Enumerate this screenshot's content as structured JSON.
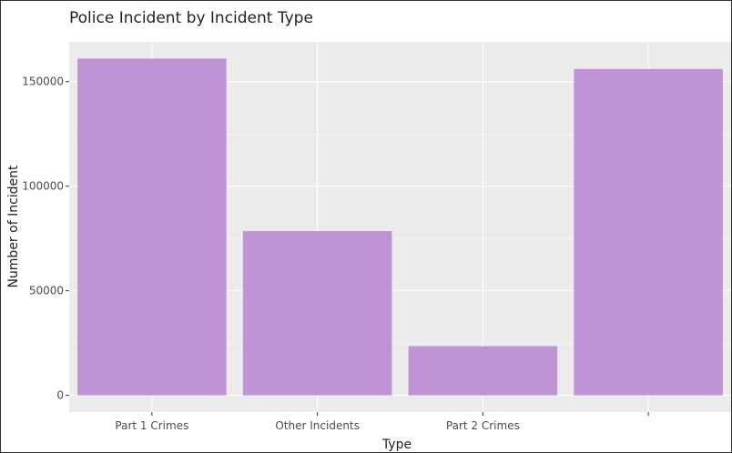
{
  "chart_data": {
    "type": "bar",
    "title": "Police Incident by Incident Type",
    "xlabel": "Type",
    "ylabel": "Number of Incident",
    "categories": [
      "Part 1 Crimes",
      "Other Incidents",
      "Part 2 Crimes",
      ""
    ],
    "values": [
      161000,
      78500,
      23500,
      156000
    ],
    "ylim": [
      -8000,
      169000
    ],
    "yticks": [
      0,
      50000,
      100000,
      150000
    ],
    "ytick_labels": [
      "0",
      "50000",
      "100000",
      "150000"
    ],
    "grid": true,
    "legend": "none",
    "colors": {
      "bar": "#bf94d4",
      "panel_background": "#ebebeb",
      "grid": "#ffffff",
      "text": "#222222",
      "tick_text": "#4d4d4d"
    }
  }
}
